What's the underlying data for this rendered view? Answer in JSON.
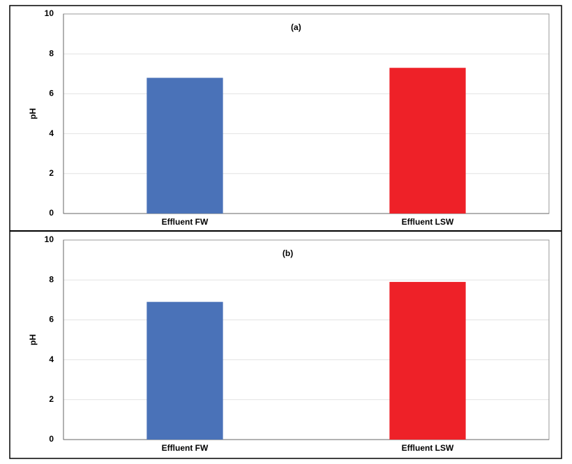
{
  "chart_data": [
    {
      "type": "bar",
      "title": "(a)",
      "y_label": "pH",
      "categories": [
        "Effluent FW",
        "Effluent LSW"
      ],
      "values": [
        6.8,
        7.3
      ],
      "colors": [
        "#4a72b8",
        "#ee2128"
      ],
      "ylim": [
        0,
        10
      ],
      "yticks": [
        0,
        2,
        4,
        6,
        8,
        10
      ],
      "grid": true
    },
    {
      "type": "bar",
      "title": "(b)",
      "y_label": "pH",
      "categories": [
        "Effluent FW",
        "Effluent LSW"
      ],
      "values": [
        6.9,
        7.9
      ],
      "colors": [
        "#4a72b8",
        "#ee2128"
      ],
      "ylim": [
        0,
        10
      ],
      "yticks": [
        0,
        2,
        4,
        6,
        8,
        10
      ],
      "grid": true
    }
  ]
}
